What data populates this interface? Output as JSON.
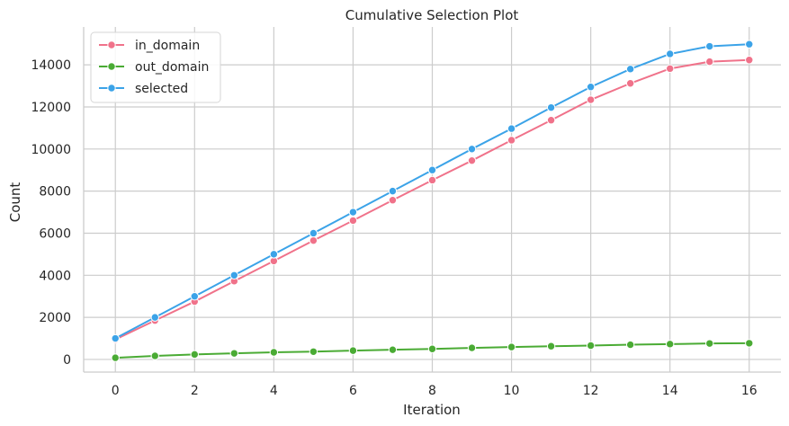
{
  "chart_data": {
    "type": "line",
    "title": "Cumulative Selection Plot",
    "xlabel": "Iteration",
    "ylabel": "Count",
    "xlim": [
      -0.8,
      16.8
    ],
    "ylim": [
      -600,
      15800
    ],
    "xticks": [
      0,
      2,
      4,
      6,
      8,
      10,
      12,
      14,
      16
    ],
    "yticks": [
      0,
      2000,
      4000,
      6000,
      8000,
      10000,
      12000,
      14000
    ],
    "x": [
      0,
      1,
      2,
      3,
      4,
      5,
      6,
      7,
      8,
      9,
      10,
      11,
      12,
      13,
      14,
      15,
      16
    ],
    "grid": true,
    "legend_position": "top-left",
    "series": [
      {
        "name": "in_domain",
        "color": "#f0728a",
        "values": [
          950,
          1850,
          2750,
          3720,
          4680,
          5650,
          6600,
          7570,
          8520,
          9450,
          10420,
          11370,
          12340,
          13120,
          13820,
          14150,
          14230
        ]
      },
      {
        "name": "out_domain",
        "color": "#4aab34",
        "values": [
          80,
          170,
          240,
          290,
          340,
          370,
          420,
          460,
          500,
          550,
          590,
          630,
          660,
          700,
          730,
          760,
          770
        ]
      },
      {
        "name": "selected",
        "color": "#3ba3e8",
        "values": [
          1000,
          2000,
          3000,
          4000,
          5000,
          6000,
          7000,
          8000,
          9000,
          10000,
          10970,
          11970,
          12950,
          13800,
          14520,
          14880,
          14980
        ]
      }
    ]
  }
}
